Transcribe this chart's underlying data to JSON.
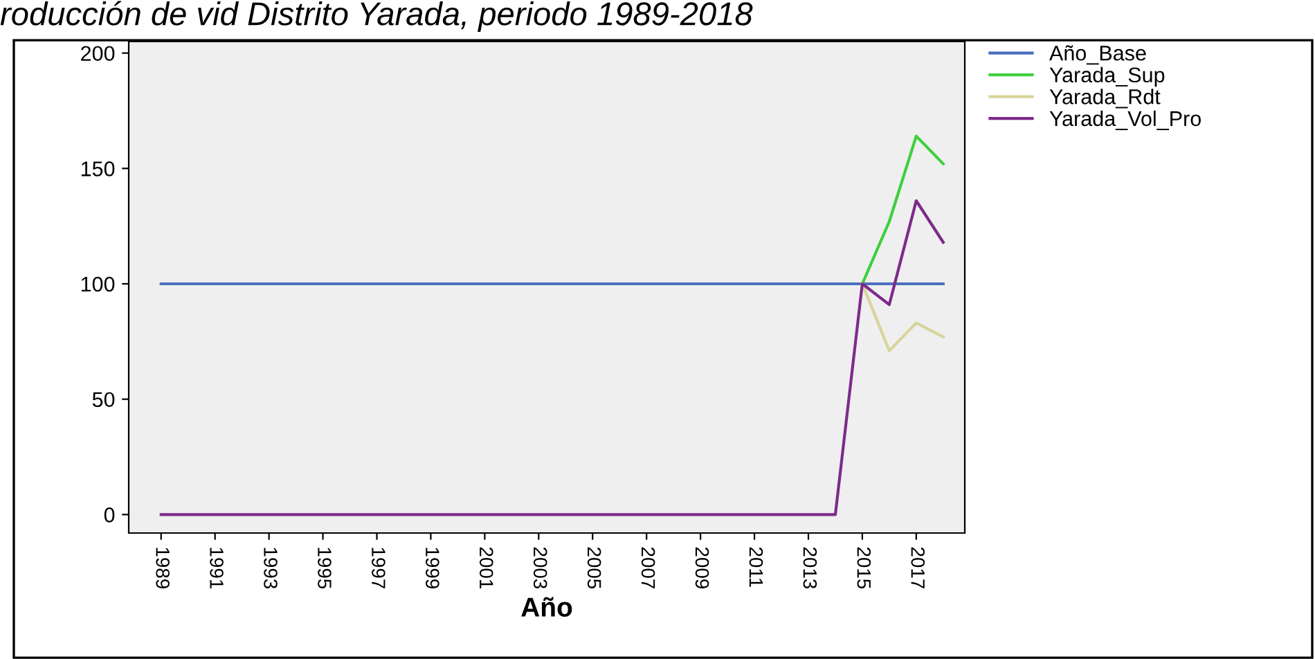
{
  "chart_data": {
    "type": "line",
    "title": "roducción de vid Distrito Yarada, periodo 1989-2018",
    "xlabel": "Año",
    "x": [
      1989,
      1990,
      1991,
      1992,
      1993,
      1994,
      1995,
      1996,
      1997,
      1998,
      1999,
      2000,
      2001,
      2002,
      2003,
      2004,
      2005,
      2006,
      2007,
      2008,
      2009,
      2010,
      2011,
      2012,
      2013,
      2014,
      2015,
      2016,
      2017,
      2018
    ],
    "series": [
      {
        "name": "Año_Base",
        "color": "#4a6fc0",
        "values": [
          100,
          100,
          100,
          100,
          100,
          100,
          100,
          100,
          100,
          100,
          100,
          100,
          100,
          100,
          100,
          100,
          100,
          100,
          100,
          100,
          100,
          100,
          100,
          100,
          100,
          100,
          100,
          100,
          100,
          100
        ]
      },
      {
        "name": "Yarada_Sup",
        "color": "#3ecf3e",
        "values": [
          null,
          null,
          null,
          null,
          null,
          null,
          null,
          null,
          null,
          null,
          null,
          null,
          null,
          null,
          null,
          null,
          null,
          null,
          null,
          null,
          null,
          null,
          null,
          null,
          null,
          null,
          100,
          127,
          164,
          152
        ]
      },
      {
        "name": "Yarada_Rdt",
        "color": "#d8d49a",
        "values": [
          null,
          null,
          null,
          null,
          null,
          null,
          null,
          null,
          null,
          null,
          null,
          null,
          null,
          null,
          null,
          null,
          null,
          null,
          null,
          null,
          null,
          null,
          null,
          null,
          null,
          null,
          100,
          71,
          83,
          77
        ]
      },
      {
        "name": "Yarada_Vol_Pro",
        "color": "#7d2a8a",
        "values": [
          0,
          0,
          0,
          0,
          0,
          0,
          0,
          0,
          0,
          0,
          0,
          0,
          0,
          0,
          0,
          0,
          0,
          0,
          0,
          0,
          0,
          0,
          0,
          0,
          0,
          0,
          100,
          91,
          136,
          118
        ]
      }
    ],
    "xlim": [
      1987.8,
      2018.8
    ],
    "xticks": [
      1989,
      1991,
      1993,
      1995,
      1997,
      1999,
      2001,
      2003,
      2005,
      2007,
      2009,
      2011,
      2013,
      2015,
      2017
    ],
    "ylim": [
      -8,
      205
    ],
    "yticks": [
      0,
      50,
      100,
      150,
      200
    ],
    "grid": false,
    "legend": "top right",
    "marker": "none",
    "line_style": "solid"
  }
}
